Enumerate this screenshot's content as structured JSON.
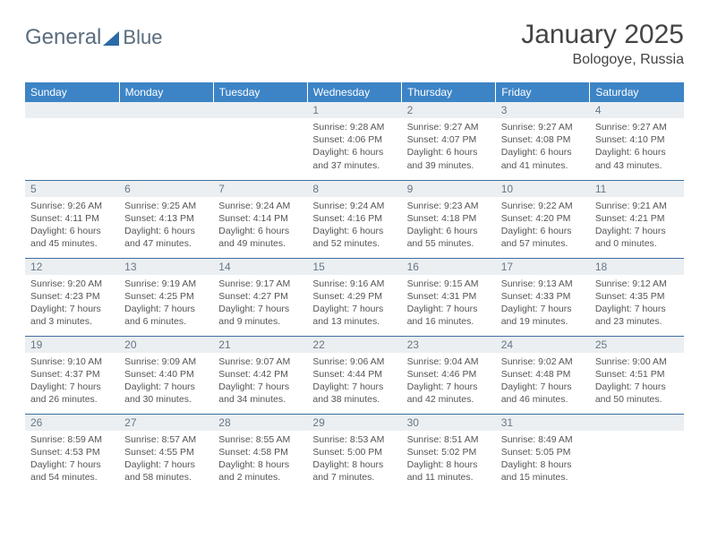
{
  "brand": {
    "word1": "General",
    "word2": "Blue"
  },
  "title": "January 2025",
  "location": "Bologoye, Russia",
  "colors": {
    "header_bg": "#3d84c6",
    "header_fg": "#ffffff",
    "daynum_bg": "#eceff1",
    "daynum_fg": "#667788",
    "rule": "#3d6ea0",
    "text": "#555555",
    "title": "#444444",
    "logo_text": "#5a6c7d",
    "logo_tri": "#2b6aa8"
  },
  "weekdays": [
    "Sunday",
    "Monday",
    "Tuesday",
    "Wednesday",
    "Thursday",
    "Friday",
    "Saturday"
  ],
  "weeks": [
    [
      null,
      null,
      null,
      {
        "n": "1",
        "sr": "9:28 AM",
        "ss": "4:06 PM",
        "dl": "6 hours and 37 minutes."
      },
      {
        "n": "2",
        "sr": "9:27 AM",
        "ss": "4:07 PM",
        "dl": "6 hours and 39 minutes."
      },
      {
        "n": "3",
        "sr": "9:27 AM",
        "ss": "4:08 PM",
        "dl": "6 hours and 41 minutes."
      },
      {
        "n": "4",
        "sr": "9:27 AM",
        "ss": "4:10 PM",
        "dl": "6 hours and 43 minutes."
      }
    ],
    [
      {
        "n": "5",
        "sr": "9:26 AM",
        "ss": "4:11 PM",
        "dl": "6 hours and 45 minutes."
      },
      {
        "n": "6",
        "sr": "9:25 AM",
        "ss": "4:13 PM",
        "dl": "6 hours and 47 minutes."
      },
      {
        "n": "7",
        "sr": "9:24 AM",
        "ss": "4:14 PM",
        "dl": "6 hours and 49 minutes."
      },
      {
        "n": "8",
        "sr": "9:24 AM",
        "ss": "4:16 PM",
        "dl": "6 hours and 52 minutes."
      },
      {
        "n": "9",
        "sr": "9:23 AM",
        "ss": "4:18 PM",
        "dl": "6 hours and 55 minutes."
      },
      {
        "n": "10",
        "sr": "9:22 AM",
        "ss": "4:20 PM",
        "dl": "6 hours and 57 minutes."
      },
      {
        "n": "11",
        "sr": "9:21 AM",
        "ss": "4:21 PM",
        "dl": "7 hours and 0 minutes."
      }
    ],
    [
      {
        "n": "12",
        "sr": "9:20 AM",
        "ss": "4:23 PM",
        "dl": "7 hours and 3 minutes."
      },
      {
        "n": "13",
        "sr": "9:19 AM",
        "ss": "4:25 PM",
        "dl": "7 hours and 6 minutes."
      },
      {
        "n": "14",
        "sr": "9:17 AM",
        "ss": "4:27 PM",
        "dl": "7 hours and 9 minutes."
      },
      {
        "n": "15",
        "sr": "9:16 AM",
        "ss": "4:29 PM",
        "dl": "7 hours and 13 minutes."
      },
      {
        "n": "16",
        "sr": "9:15 AM",
        "ss": "4:31 PM",
        "dl": "7 hours and 16 minutes."
      },
      {
        "n": "17",
        "sr": "9:13 AM",
        "ss": "4:33 PM",
        "dl": "7 hours and 19 minutes."
      },
      {
        "n": "18",
        "sr": "9:12 AM",
        "ss": "4:35 PM",
        "dl": "7 hours and 23 minutes."
      }
    ],
    [
      {
        "n": "19",
        "sr": "9:10 AM",
        "ss": "4:37 PM",
        "dl": "7 hours and 26 minutes."
      },
      {
        "n": "20",
        "sr": "9:09 AM",
        "ss": "4:40 PM",
        "dl": "7 hours and 30 minutes."
      },
      {
        "n": "21",
        "sr": "9:07 AM",
        "ss": "4:42 PM",
        "dl": "7 hours and 34 minutes."
      },
      {
        "n": "22",
        "sr": "9:06 AM",
        "ss": "4:44 PM",
        "dl": "7 hours and 38 minutes."
      },
      {
        "n": "23",
        "sr": "9:04 AM",
        "ss": "4:46 PM",
        "dl": "7 hours and 42 minutes."
      },
      {
        "n": "24",
        "sr": "9:02 AM",
        "ss": "4:48 PM",
        "dl": "7 hours and 46 minutes."
      },
      {
        "n": "25",
        "sr": "9:00 AM",
        "ss": "4:51 PM",
        "dl": "7 hours and 50 minutes."
      }
    ],
    [
      {
        "n": "26",
        "sr": "8:59 AM",
        "ss": "4:53 PM",
        "dl": "7 hours and 54 minutes."
      },
      {
        "n": "27",
        "sr": "8:57 AM",
        "ss": "4:55 PM",
        "dl": "7 hours and 58 minutes."
      },
      {
        "n": "28",
        "sr": "8:55 AM",
        "ss": "4:58 PM",
        "dl": "8 hours and 2 minutes."
      },
      {
        "n": "29",
        "sr": "8:53 AM",
        "ss": "5:00 PM",
        "dl": "8 hours and 7 minutes."
      },
      {
        "n": "30",
        "sr": "8:51 AM",
        "ss": "5:02 PM",
        "dl": "8 hours and 11 minutes."
      },
      {
        "n": "31",
        "sr": "8:49 AM",
        "ss": "5:05 PM",
        "dl": "8 hours and 15 minutes."
      },
      null
    ]
  ],
  "labels": {
    "sunrise": "Sunrise:",
    "sunset": "Sunset:",
    "daylight": "Daylight:"
  }
}
